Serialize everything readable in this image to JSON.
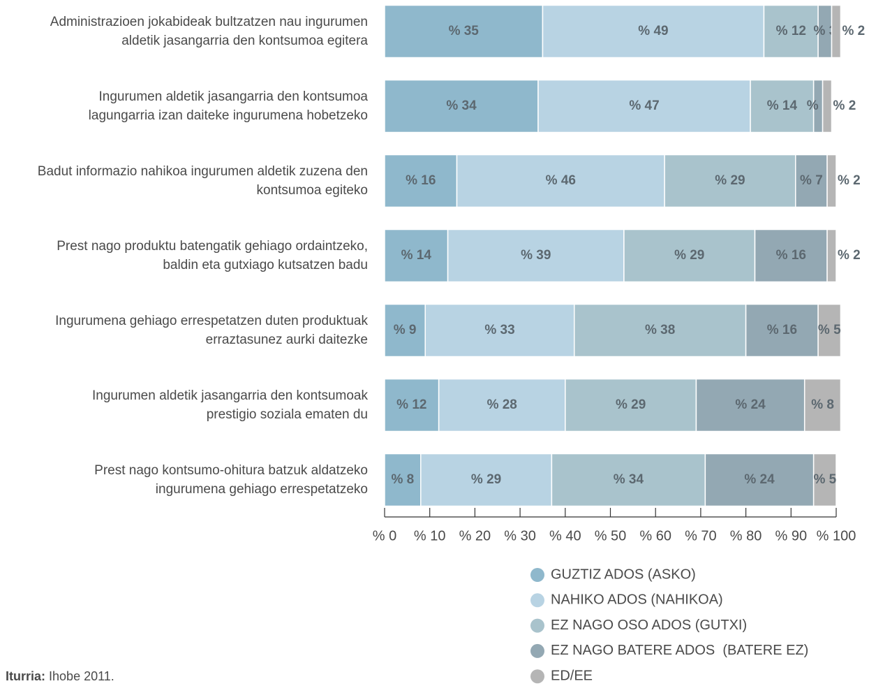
{
  "chart_data": {
    "type": "stacked_barh",
    "categories": [
      "Administrazioen jokabideak bultzatzen nau ingurumen\naldetik  jasangarria den kontsumoa egitera",
      "Ingurumen aldetik jasangarria den kontsumoa\nlagungarria izan daiteke ingurumena hobetzeko",
      "Badut informazio nahikoa ingurumen aldetik zuzena den\nkontsumoa egiteko",
      "Prest nago produktu batengatik gehiago ordaintzeko,\nbaldin eta gutxiago kutsatzen badu",
      "Ingurumena gehiago errespetatzen duten produktuak\nerraztasunez aurki daitezke",
      "Ingurumen aldetik jasangarria den kontsumoak\nprestigio soziala ematen du",
      "Prest nago kontsumo-ohitura batzuk aldatzeko\ningurumena gehiago errespetatzeko"
    ],
    "series": [
      {
        "name": "GUZTIZ ADOS (ASKO)",
        "color": "#8fb8cc",
        "values": [
          35,
          34,
          16,
          14,
          9,
          12,
          8
        ],
        "value_labels": [
          "% 35",
          "% 34",
          "% 16",
          "% 14",
          "% 9",
          "% 12",
          "% 8"
        ]
      },
      {
        "name": "NAHIKO ADOS (NAHIKOA)",
        "color": "#b8d3e3",
        "values": [
          49,
          47,
          46,
          39,
          33,
          28,
          29
        ],
        "value_labels": [
          "% 49",
          "% 47",
          "% 46",
          "% 39",
          "% 33",
          "% 28",
          "% 29"
        ]
      },
      {
        "name": "EZ NAGO OSO ADOS (GUTXI)",
        "color": "#a9c3cc",
        "values": [
          12,
          14,
          29,
          29,
          38,
          29,
          34
        ],
        "value_labels": [
          "% 12",
          "% 14",
          "% 29",
          "% 29",
          "% 38",
          "% 29",
          "% 34"
        ]
      },
      {
        "name": "EZ NAGO BATERE ADOS  (BATERE EZ)",
        "color": "#93a8b3",
        "values": [
          3,
          2,
          7,
          16,
          16,
          24,
          24
        ],
        "value_labels": [
          "% 3",
          "% 2",
          "% 7",
          "% 16",
          "% 16",
          "% 24",
          "% 24"
        ]
      },
      {
        "name": "ED/EE",
        "color": "#b5b5b5",
        "values": [
          2,
          2,
          2,
          2,
          5,
          8,
          5
        ],
        "value_labels": [
          "% 2",
          "% 2",
          "% 2",
          "% 2",
          "% 5",
          "% 8",
          "% 5"
        ]
      }
    ],
    "xlim": [
      0,
      100
    ],
    "xticks": [
      {
        "value": 0,
        "label": "% 0"
      },
      {
        "value": 10,
        "label": "% 10"
      },
      {
        "value": 20,
        "label": "% 20"
      },
      {
        "value": 30,
        "label": "% 30"
      },
      {
        "value": 40,
        "label": "% 40"
      },
      {
        "value": 50,
        "label": "% 50"
      },
      {
        "value": 60,
        "label": "% 60"
      },
      {
        "value": 70,
        "label": "% 70"
      },
      {
        "value": 80,
        "label": "% 80"
      },
      {
        "value": 90,
        "label": "% 90"
      },
      {
        "value": 100,
        "label": "% 100"
      }
    ],
    "source_label": "Iturria:",
    "source_text": "Ihobe 2011."
  }
}
